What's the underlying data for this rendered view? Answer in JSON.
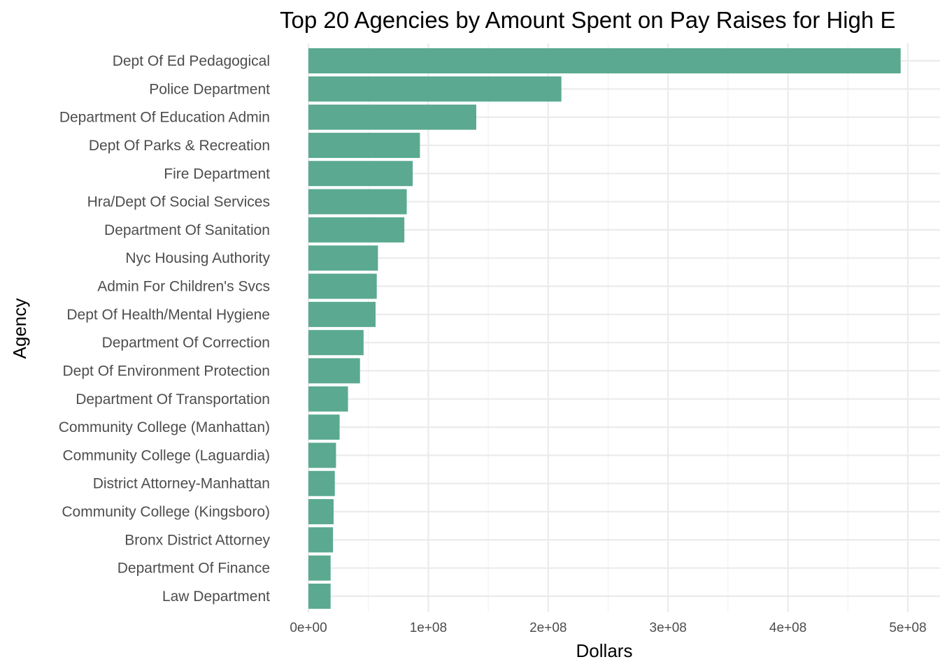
{
  "chart_data": {
    "type": "bar",
    "orientation": "horizontal",
    "title": "Top 20 Agencies by Amount Spent on Pay Raises for High E",
    "xlabel": "Dollars",
    "ylabel": "Agency",
    "categories": [
      "Dept Of Ed Pedagogical",
      "Police Department",
      "Department Of Education Admin",
      "Dept Of Parks & Recreation",
      "Fire Department",
      "Hra/Dept Of Social Services",
      "Department Of Sanitation",
      "Nyc Housing Authority",
      "Admin For Children's Svcs",
      "Dept Of Health/Mental Hygiene",
      "Department Of Correction",
      "Dept Of Environment Protection",
      "Department Of Transportation",
      "Community College (Manhattan)",
      "Community College (Laguardia)",
      "District Attorney-Manhattan",
      "Community College (Kingsboro)",
      "Bronx District Attorney",
      "Department Of Finance",
      "Law Department"
    ],
    "values": [
      494000000,
      211000000,
      140000000,
      93000000,
      87000000,
      82000000,
      80000000,
      58000000,
      57000000,
      56000000,
      46000000,
      43000000,
      33000000,
      26000000,
      23000000,
      22000000,
      21000000,
      20500000,
      18500000,
      18500000
    ],
    "xlim": [
      0,
      510000000
    ],
    "x_ticks": [
      0,
      100000000,
      200000000,
      300000000,
      400000000,
      500000000
    ],
    "x_tick_labels": [
      "0e+00",
      "1e+08",
      "2e+08",
      "3e+08",
      "4e+08",
      "5e+08"
    ],
    "bar_color": "#5aa990",
    "grid": true,
    "legend": "none"
  }
}
